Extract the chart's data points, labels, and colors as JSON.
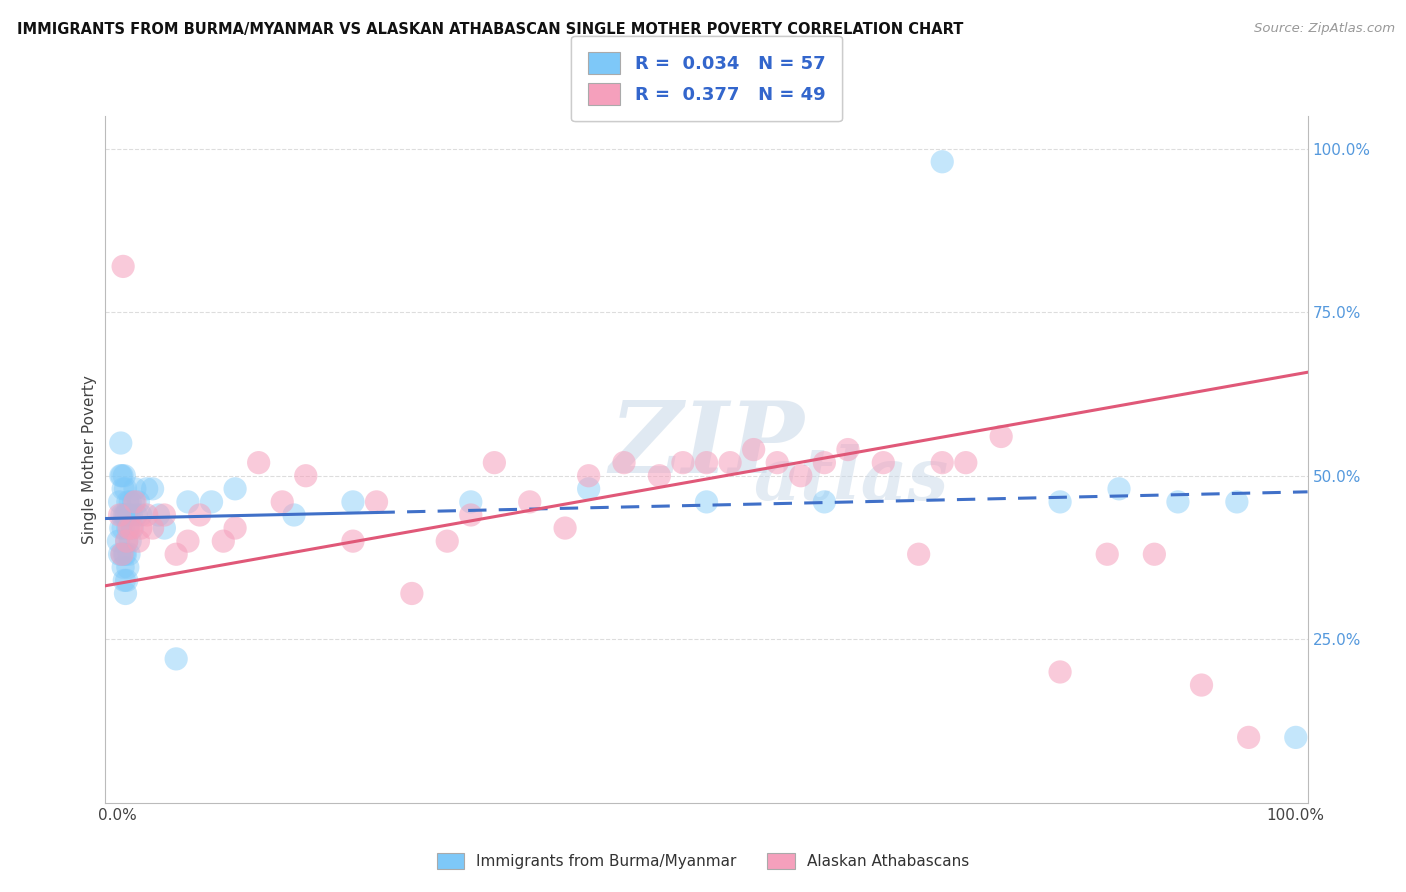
{
  "title": "IMMIGRANTS FROM BURMA/MYANMAR VS ALASKAN ATHABASCAN SINGLE MOTHER POVERTY CORRELATION CHART",
  "source": "Source: ZipAtlas.com",
  "ylabel": "Single Mother Poverty",
  "legend_blue_r": "0.034",
  "legend_blue_n": "57",
  "legend_pink_r": "0.377",
  "legend_pink_n": "49",
  "legend_label_blue": "Immigrants from Burma/Myanmar",
  "legend_label_pink": "Alaskan Athabascans",
  "blue_color": "#7EC8F8",
  "pink_color": "#F5A0BC",
  "blue_line_color": "#4070C8",
  "pink_line_color": "#E05878",
  "blue_scatter_x": [
    0.001,
    0.002,
    0.002,
    0.003,
    0.003,
    0.003,
    0.004,
    0.004,
    0.004,
    0.005,
    0.005,
    0.005,
    0.006,
    0.006,
    0.006,
    0.006,
    0.007,
    0.007,
    0.007,
    0.007,
    0.008,
    0.008,
    0.008,
    0.009,
    0.009,
    0.009,
    0.01,
    0.01,
    0.011,
    0.011,
    0.012,
    0.013,
    0.014,
    0.015,
    0.016,
    0.018,
    0.02,
    0.025,
    0.03,
    0.035,
    0.04,
    0.05,
    0.06,
    0.08,
    0.1,
    0.15,
    0.2,
    0.3,
    0.4,
    0.5,
    0.6,
    0.7,
    0.8,
    0.85,
    0.9,
    0.95,
    1.0
  ],
  "blue_scatter_y": [
    0.4,
    0.38,
    0.46,
    0.42,
    0.5,
    0.55,
    0.38,
    0.44,
    0.5,
    0.36,
    0.42,
    0.48,
    0.34,
    0.38,
    0.44,
    0.5,
    0.32,
    0.38,
    0.44,
    0.48,
    0.34,
    0.4,
    0.44,
    0.36,
    0.42,
    0.46,
    0.38,
    0.44,
    0.4,
    0.46,
    0.44,
    0.42,
    0.46,
    0.48,
    0.44,
    0.46,
    0.44,
    0.48,
    0.48,
    0.44,
    0.42,
    0.22,
    0.46,
    0.46,
    0.48,
    0.44,
    0.46,
    0.46,
    0.48,
    0.46,
    0.46,
    0.98,
    0.46,
    0.48,
    0.46,
    0.46,
    0.1
  ],
  "pink_scatter_x": [
    0.002,
    0.004,
    0.005,
    0.008,
    0.01,
    0.012,
    0.015,
    0.018,
    0.02,
    0.025,
    0.03,
    0.04,
    0.05,
    0.06,
    0.07,
    0.09,
    0.1,
    0.12,
    0.14,
    0.16,
    0.2,
    0.22,
    0.25,
    0.28,
    0.3,
    0.32,
    0.35,
    0.38,
    0.4,
    0.43,
    0.46,
    0.48,
    0.5,
    0.52,
    0.54,
    0.56,
    0.58,
    0.6,
    0.62,
    0.65,
    0.68,
    0.7,
    0.72,
    0.75,
    0.8,
    0.84,
    0.88,
    0.92,
    0.96
  ],
  "pink_scatter_y": [
    0.44,
    0.38,
    0.82,
    0.4,
    0.42,
    0.42,
    0.46,
    0.4,
    0.42,
    0.44,
    0.42,
    0.44,
    0.38,
    0.4,
    0.44,
    0.4,
    0.42,
    0.52,
    0.46,
    0.5,
    0.4,
    0.46,
    0.32,
    0.4,
    0.44,
    0.52,
    0.46,
    0.42,
    0.5,
    0.52,
    0.5,
    0.52,
    0.52,
    0.52,
    0.54,
    0.52,
    0.5,
    0.52,
    0.54,
    0.52,
    0.38,
    0.52,
    0.52,
    0.56,
    0.2,
    0.38,
    0.38,
    0.18,
    0.1
  ],
  "background_color": "#FFFFFF",
  "grid_color": "#DDDDDD"
}
